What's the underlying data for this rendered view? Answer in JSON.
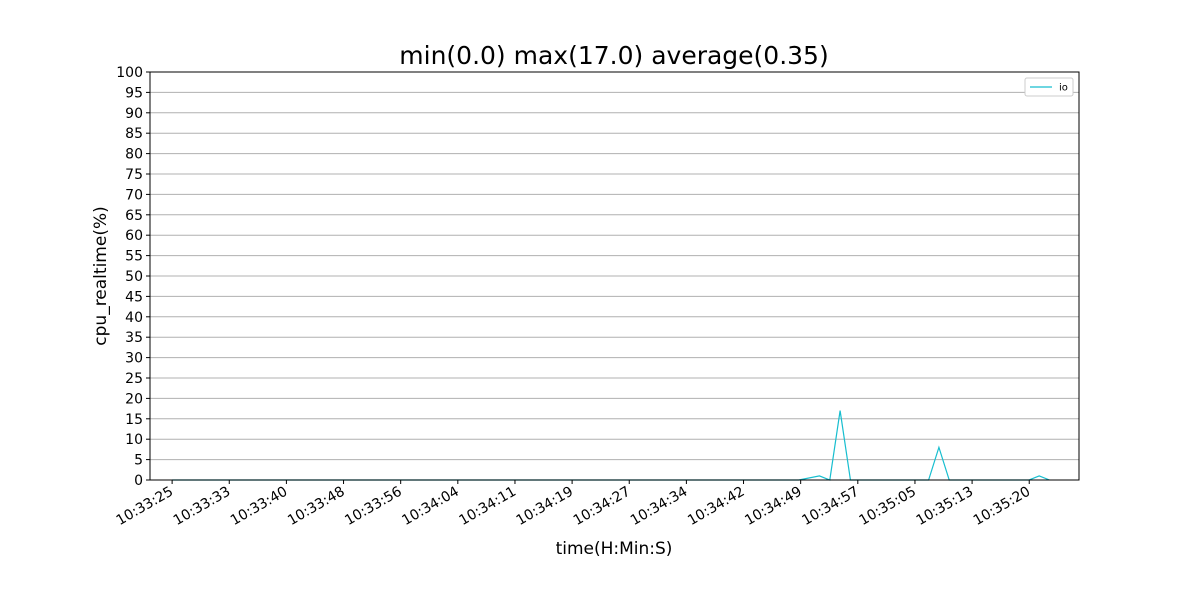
{
  "chart_data": {
    "type": "line",
    "title": "min(0.0) max(17.0) average(0.35)",
    "xlabel": "time(H:Min:S)",
    "ylabel": "cpu_realtime(%)",
    "ylim": [
      0,
      100
    ],
    "yticks": [
      0,
      5,
      10,
      15,
      20,
      25,
      30,
      35,
      40,
      45,
      50,
      55,
      60,
      65,
      70,
      75,
      80,
      85,
      90,
      95,
      100
    ],
    "xticks": [
      "10:33:25",
      "10:33:33",
      "10:33:40",
      "10:33:48",
      "10:33:56",
      "10:34:04",
      "10:34:11",
      "10:34:19",
      "10:34:27",
      "10:34:34",
      "10:34:42",
      "10:34:49",
      "10:34:57",
      "10:35:05",
      "10:35:13",
      "10:35:20"
    ],
    "x_range_seconds": [
      -3,
      123
    ],
    "xtick_seconds": [
      0,
      7.75,
      15.5,
      23.25,
      31,
      38.75,
      46.5,
      54.25,
      62,
      69.75,
      77.5,
      85.25,
      93,
      100.75,
      108.5,
      116.25
    ],
    "grid": "horizontal",
    "legend_position": "top-right",
    "series": [
      {
        "name": "io",
        "color": "#17becf",
        "x_seconds": [
          0,
          85,
          87.8,
          89.2,
          90.6,
          92,
          95,
          98,
          101,
          102.6,
          104,
          105.4,
          108,
          112,
          115,
          116.2,
          117.6,
          119
        ],
        "values": [
          0,
          0,
          1,
          0,
          17,
          0,
          0,
          0,
          0,
          0,
          8,
          0,
          0,
          0,
          0,
          0,
          1,
          0
        ]
      }
    ]
  }
}
